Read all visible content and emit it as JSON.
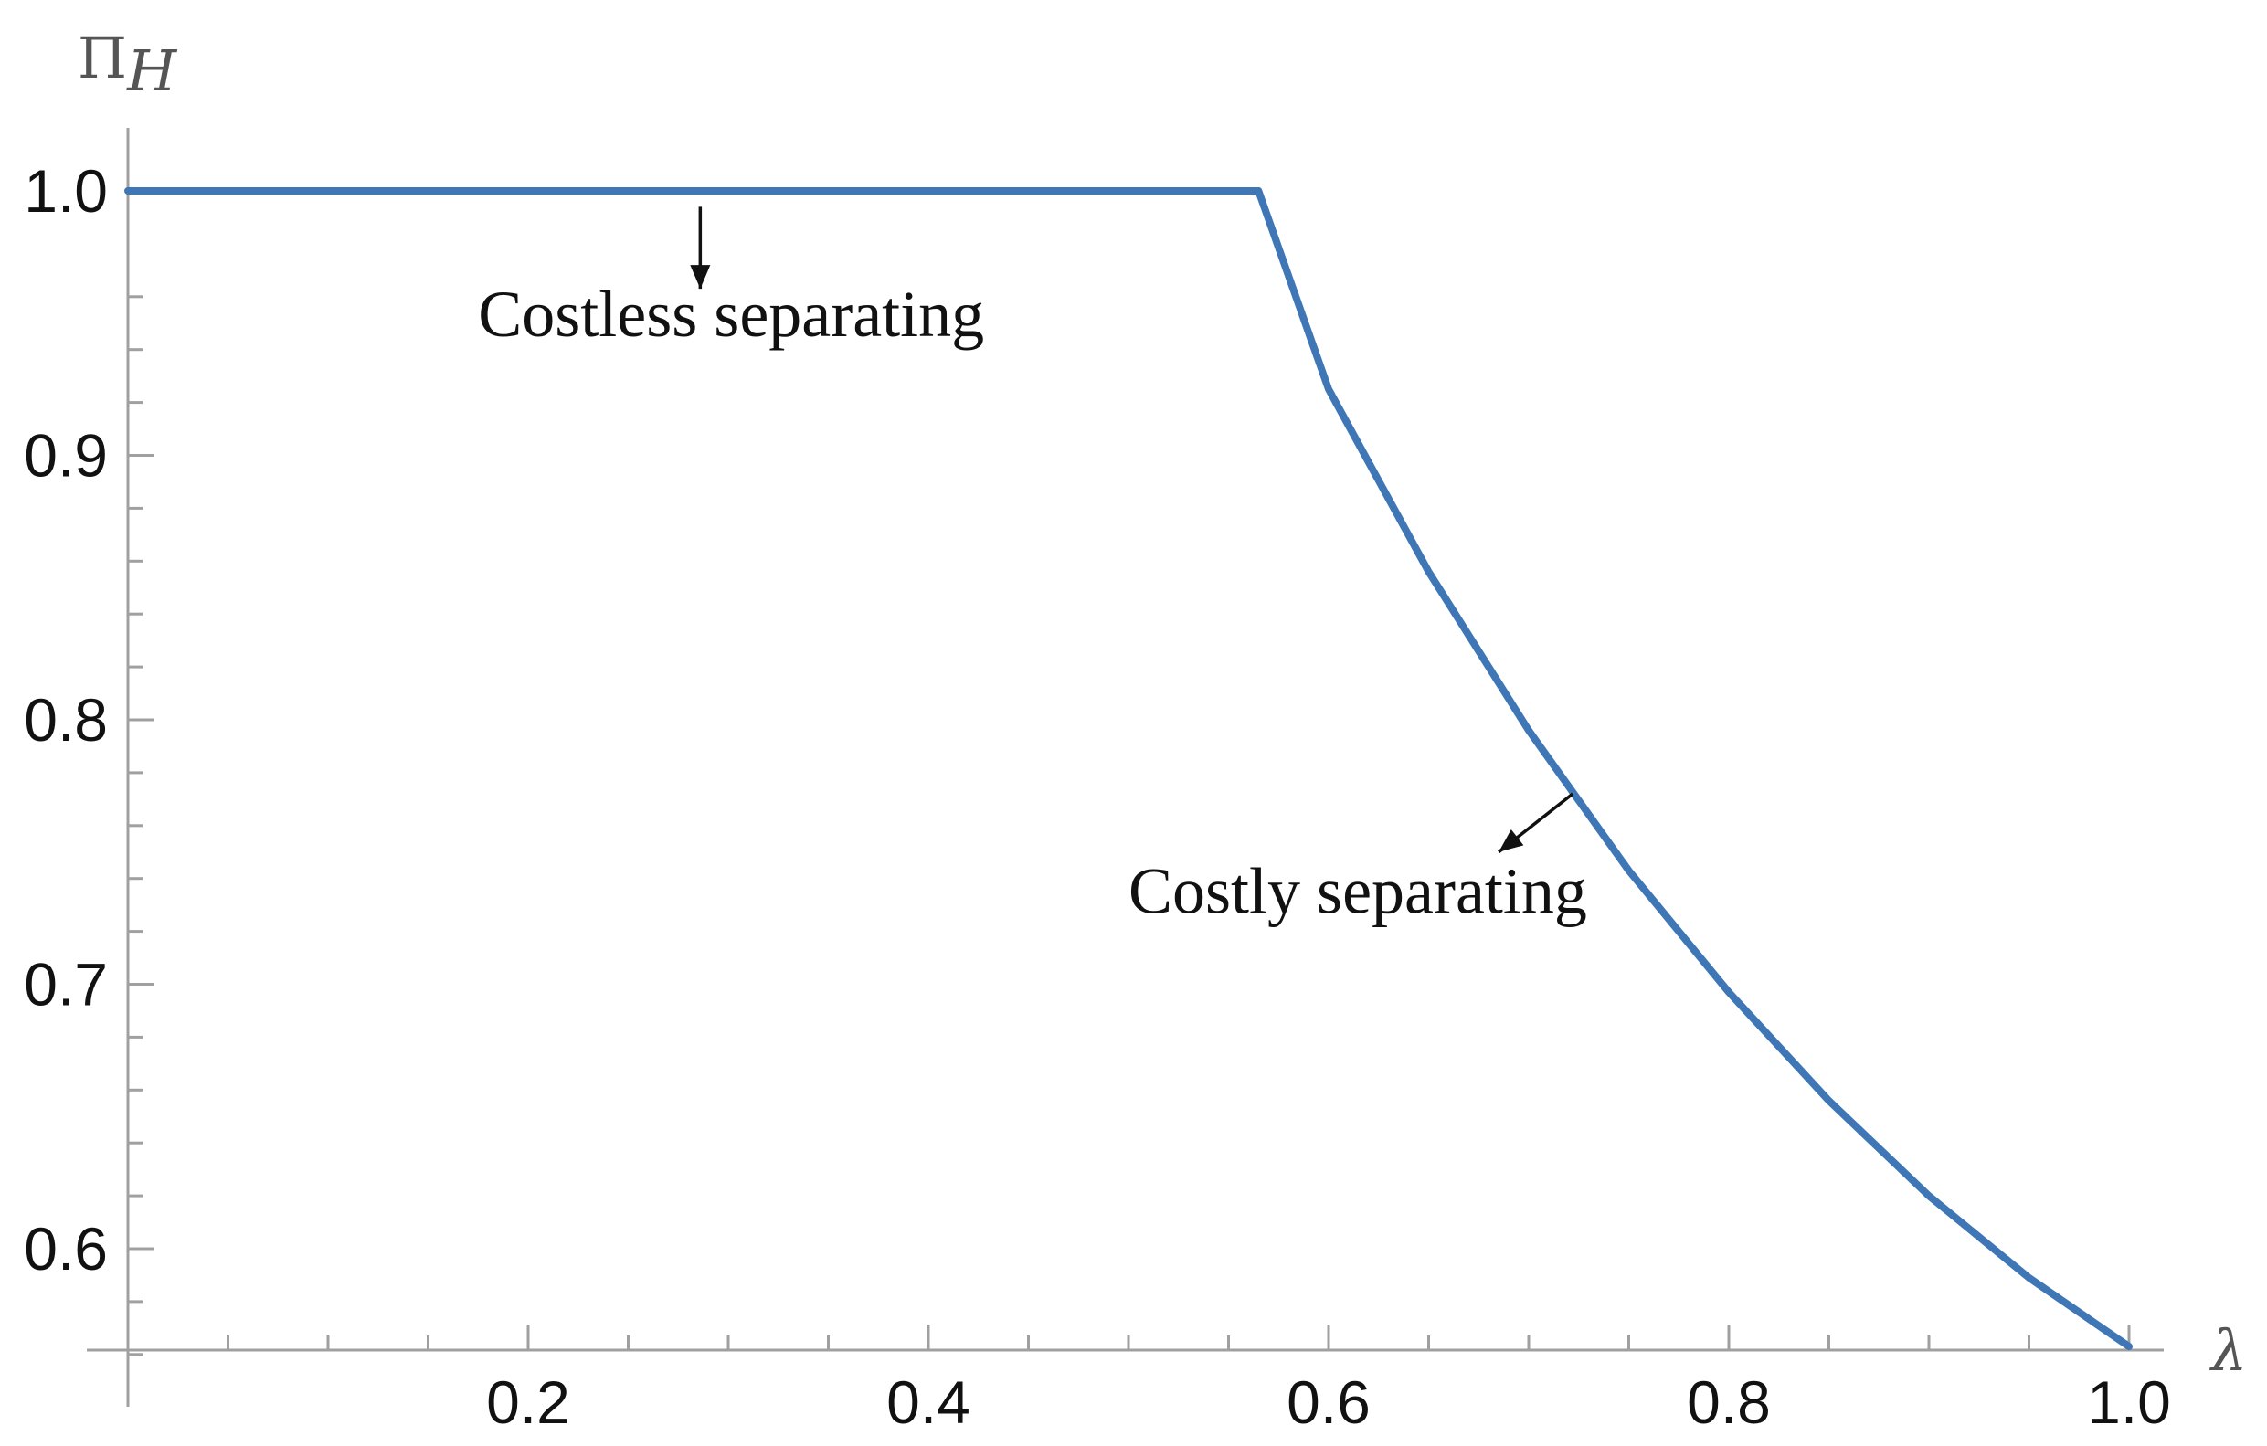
{
  "chart_data": {
    "type": "line",
    "title": "",
    "xlabel": "λ",
    "ylabel_main": "Π",
    "ylabel_sub": "H",
    "xlim": [
      0.0,
      1.0
    ],
    "ylim": [
      0.56,
      1.02
    ],
    "x_ticks": [
      {
        "value": 0.2,
        "label": "0.2"
      },
      {
        "value": 0.4,
        "label": "0.4"
      },
      {
        "value": 0.6,
        "label": "0.6"
      },
      {
        "value": 0.8,
        "label": "0.8"
      },
      {
        "value": 1.0,
        "label": "1.0"
      }
    ],
    "y_ticks": [
      {
        "value": 0.6,
        "label": "0.6"
      },
      {
        "value": 0.7,
        "label": "0.7"
      },
      {
        "value": 0.8,
        "label": "0.8"
      },
      {
        "value": 0.9,
        "label": "0.9"
      },
      {
        "value": 1.0,
        "label": "1.0"
      }
    ],
    "grid": false,
    "line_color": "#3f76b5",
    "series": [
      {
        "x": [
          0.0,
          0.565,
          0.6,
          0.65,
          0.7,
          0.75,
          0.8,
          0.85,
          0.9,
          0.95,
          1.0
        ],
        "y": [
          1.0,
          1.0,
          0.925,
          0.856,
          0.796,
          0.743,
          0.697,
          0.656,
          0.62,
          0.589,
          0.563
        ]
      }
    ],
    "annotations": [
      {
        "text": "Costless separating",
        "x": 0.175,
        "y": 0.945,
        "arrow_from": [
          0.286,
          0.994
        ],
        "arrow_to": [
          0.286,
          0.963
        ]
      },
      {
        "text": "Costly separating",
        "x": 0.5,
        "y": 0.727,
        "arrow_from": [
          0.722,
          0.772
        ],
        "arrow_to": [
          0.685,
          0.75
        ]
      }
    ]
  }
}
